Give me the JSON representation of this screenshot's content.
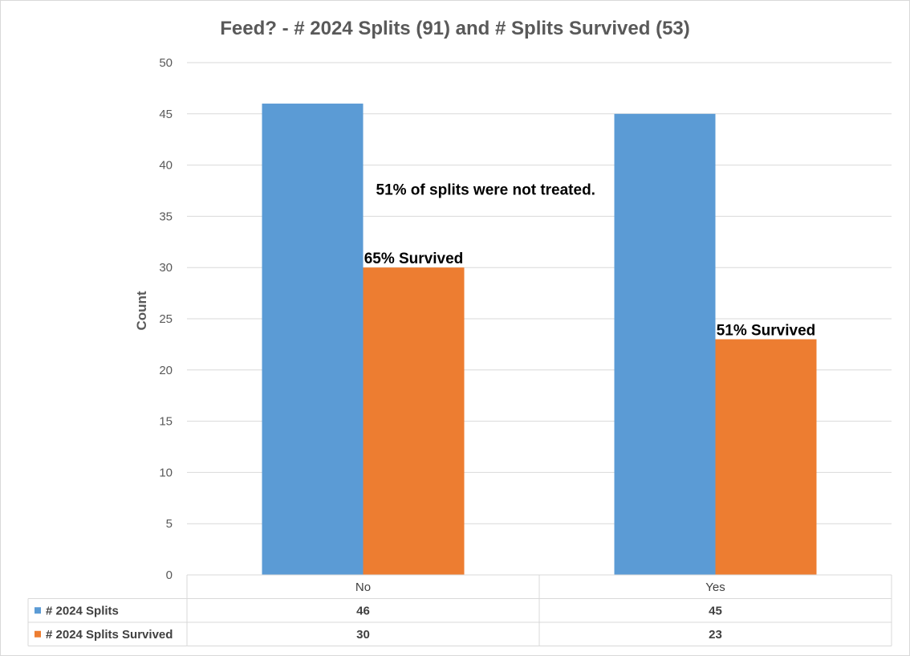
{
  "chart_data": {
    "type": "bar",
    "title": "Feed? - # 2024 Splits (91) and # Splits Survived (53)",
    "xlabel": "",
    "ylabel": "Count",
    "ylim": [
      0,
      50
    ],
    "yticks": [
      0,
      5,
      10,
      15,
      20,
      25,
      30,
      35,
      40,
      45,
      50
    ],
    "categories": [
      "No",
      "Yes"
    ],
    "series": [
      {
        "name": "# 2024 Splits",
        "values": [
          46,
          45
        ],
        "color": "#5b9bd5"
      },
      {
        "name": "# 2024 Splits Survived",
        "values": [
          30,
          23
        ],
        "color": "#ed7d31"
      }
    ],
    "grid": true,
    "legend": "data-table",
    "annotations": [
      {
        "text": "65% Survived",
        "category": "No",
        "series": 1
      },
      {
        "text": "51% Survived",
        "category": "Yes",
        "series": 1
      },
      {
        "text": "51% of splits were not treated.",
        "category": "No",
        "series": 0
      }
    ]
  },
  "colors": {
    "gridline": "#d9d9d9",
    "tick_text": "#595959"
  }
}
